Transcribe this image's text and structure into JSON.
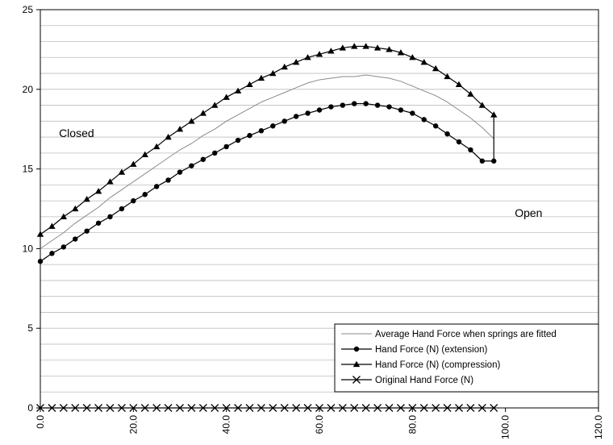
{
  "chart_data": {
    "type": "line",
    "title": "",
    "xlabel": "",
    "ylabel": "",
    "xlim": [
      0,
      120
    ],
    "ylim": [
      0,
      25
    ],
    "x_ticks": [
      "0.0",
      "20.0",
      "40.0",
      "60.0",
      "80.0",
      "100.0",
      "120.0"
    ],
    "y_ticks": [
      "0",
      "5",
      "10",
      "15",
      "20",
      "25"
    ],
    "grid": "horizontal",
    "legend_position": "bottom-right",
    "x": [
      0,
      2.5,
      5,
      7.5,
      10,
      12.5,
      15,
      17.5,
      20,
      22.5,
      25,
      27.5,
      30,
      32.5,
      35,
      37.5,
      40,
      42.5,
      45,
      47.5,
      50,
      52.5,
      55,
      57.5,
      60,
      62.5,
      65,
      67.5,
      70,
      72.5,
      75,
      77.5,
      80,
      82.5,
      85,
      87.5,
      90,
      92.5,
      95,
      97.5
    ],
    "series": [
      {
        "name": "Average Hand Force when springs are fitted",
        "marker": "none",
        "values": [
          10.0,
          10.5,
          11.0,
          11.6,
          12.1,
          12.6,
          13.2,
          13.7,
          14.2,
          14.7,
          15.2,
          15.7,
          16.2,
          16.6,
          17.1,
          17.5,
          18.0,
          18.4,
          18.8,
          19.2,
          19.5,
          19.8,
          20.1,
          20.4,
          20.6,
          20.7,
          20.8,
          20.8,
          20.9,
          20.8,
          20.7,
          20.5,
          20.2,
          19.9,
          19.6,
          19.2,
          18.7,
          18.2,
          17.6,
          16.9
        ]
      },
      {
        "name": "Hand Force (N) (extension)",
        "marker": "circle",
        "values": [
          9.2,
          9.7,
          10.1,
          10.6,
          11.1,
          11.6,
          12.0,
          12.5,
          13.0,
          13.4,
          13.9,
          14.3,
          14.8,
          15.2,
          15.6,
          16.0,
          16.4,
          16.8,
          17.1,
          17.4,
          17.7,
          18.0,
          18.3,
          18.5,
          18.7,
          18.9,
          19.0,
          19.1,
          19.1,
          19.0,
          18.9,
          18.7,
          18.5,
          18.1,
          17.7,
          17.2,
          16.7,
          16.2,
          15.5,
          15.5
        ]
      },
      {
        "name": "Hand Force (N) (compression)",
        "marker": "triangle",
        "values": [
          10.9,
          11.4,
          12.0,
          12.5,
          13.1,
          13.6,
          14.2,
          14.8,
          15.3,
          15.9,
          16.4,
          17.0,
          17.5,
          18.0,
          18.5,
          19.0,
          19.5,
          19.9,
          20.3,
          20.7,
          21.0,
          21.4,
          21.7,
          22.0,
          22.2,
          22.4,
          22.6,
          22.7,
          22.7,
          22.6,
          22.5,
          22.3,
          22.0,
          21.7,
          21.3,
          20.8,
          20.3,
          19.7,
          19.0,
          18.4
        ]
      },
      {
        "name": "Original Hand Force (N)",
        "marker": "x",
        "values": [
          0,
          0,
          0,
          0,
          0,
          0,
          0,
          0,
          0,
          0,
          0,
          0,
          0,
          0,
          0,
          0,
          0,
          0,
          0,
          0,
          0,
          0,
          0,
          0,
          0,
          0,
          0,
          0,
          0,
          0,
          0,
          0,
          0,
          0,
          0,
          0,
          0,
          0,
          0,
          0
        ]
      }
    ],
    "annotations": [
      {
        "text": "Closed",
        "x": 4,
        "y": 17
      },
      {
        "text": "Open",
        "x": 102,
        "y": 12
      }
    ]
  }
}
